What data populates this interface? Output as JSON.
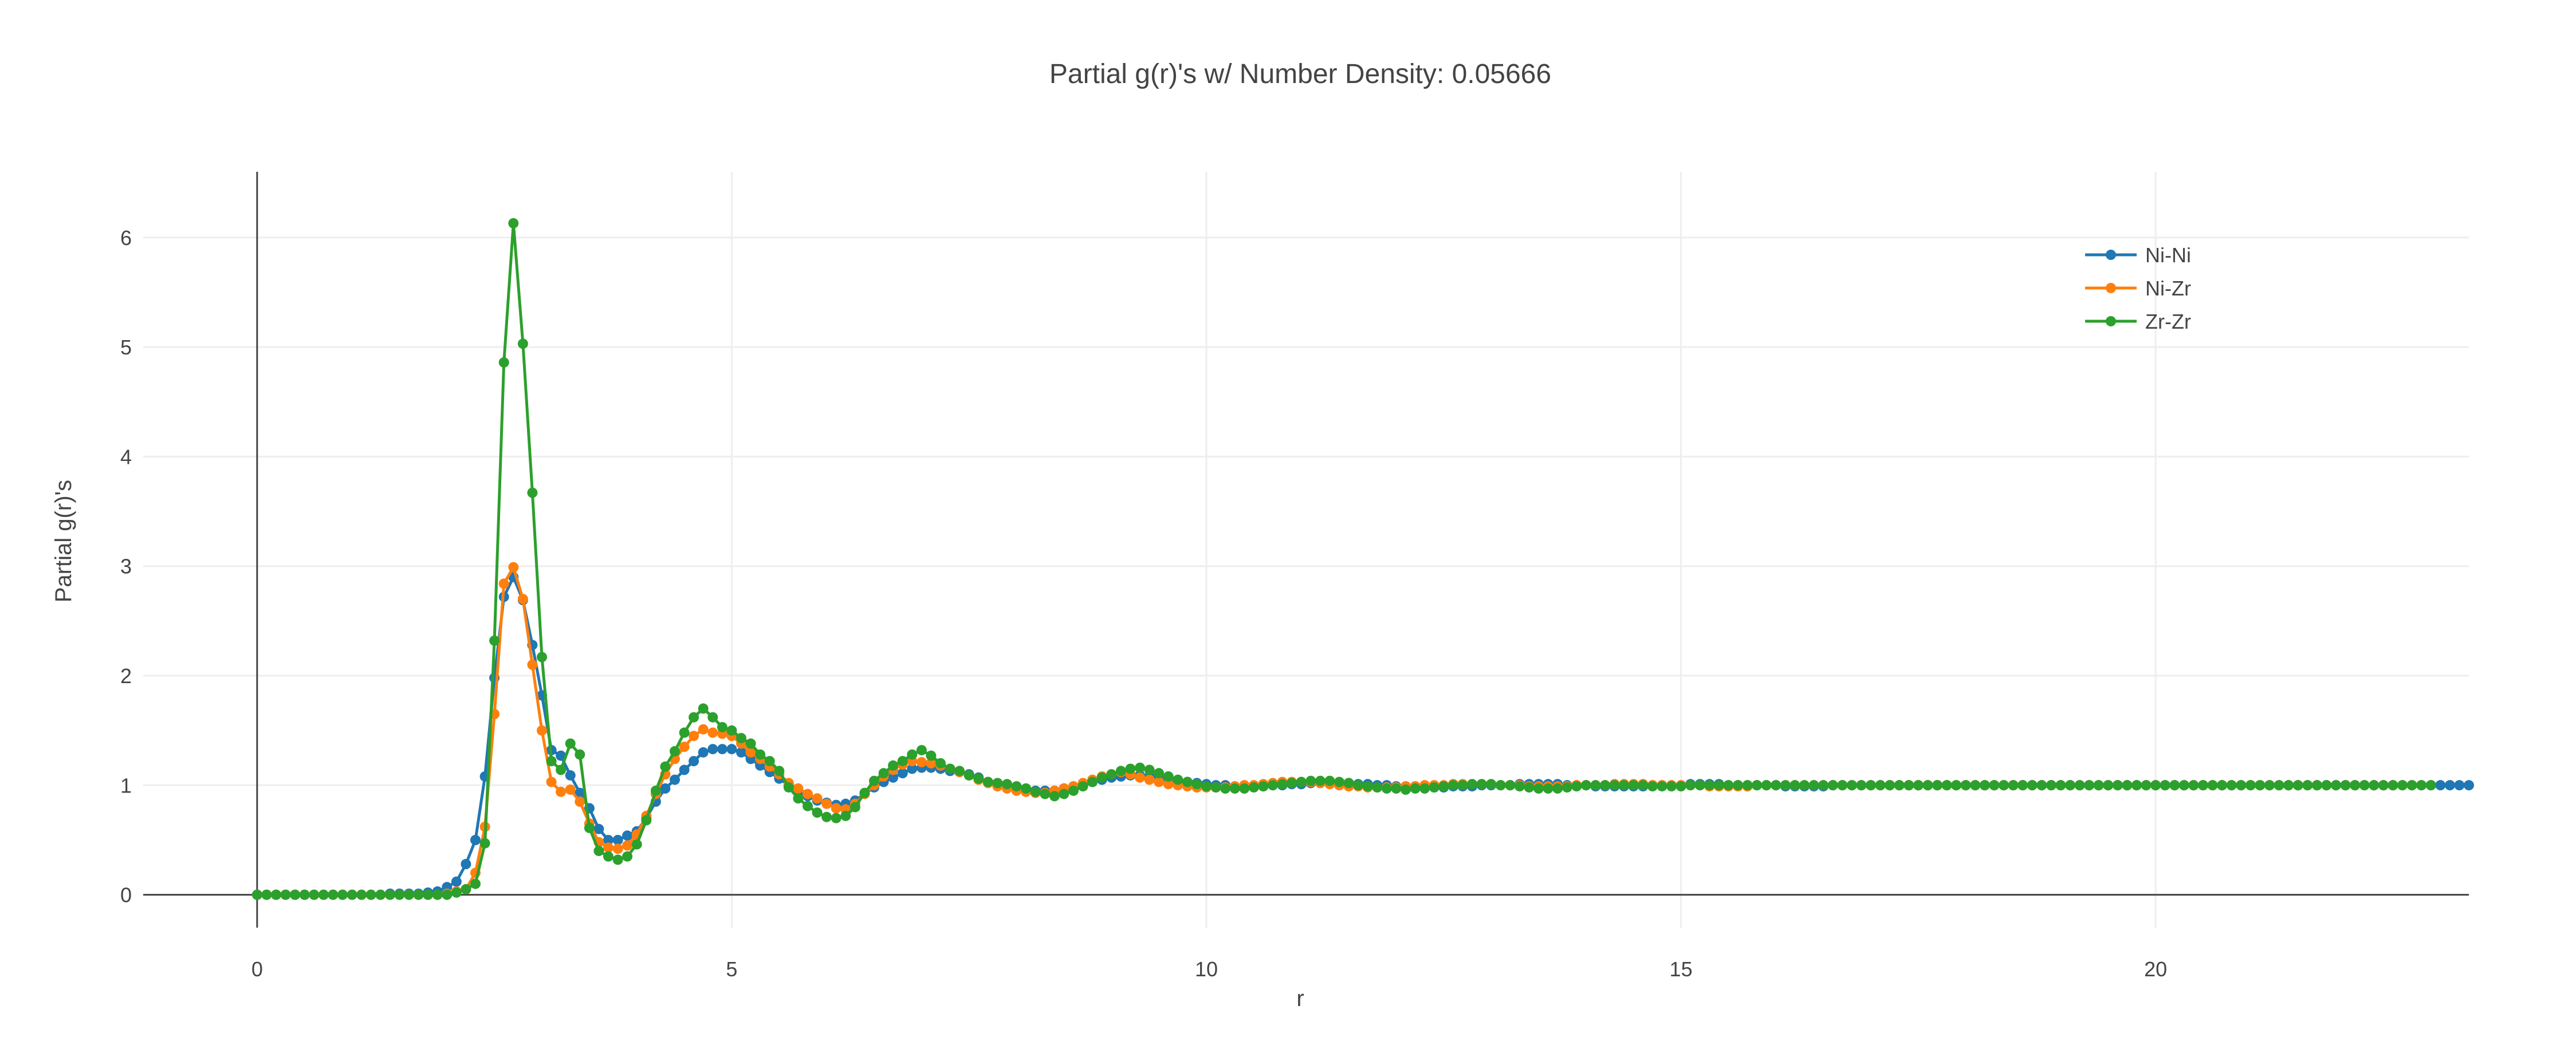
{
  "chart_data": {
    "type": "line",
    "title": "Partial g(r)'s w/ Number Density: 0.05666",
    "xlabel": "r",
    "ylabel": "Partial g(r)'s",
    "xlim": [
      -1.2,
      23.3
    ],
    "ylim": [
      -0.3,
      6.6
    ],
    "xticks": [
      0,
      5,
      10,
      15,
      20
    ],
    "xtick_labels": [
      "0",
      "5",
      "10",
      "15",
      "20"
    ],
    "yticks": [
      0,
      1,
      2,
      3,
      4,
      5,
      6
    ],
    "ytick_labels": [
      "0",
      "1",
      "2",
      "3",
      "4",
      "5",
      "6"
    ],
    "grid": true,
    "legend_position": "top-right",
    "x_start": 0,
    "x_step": 0.1,
    "series": [
      {
        "name": "Ni-Ni",
        "color": "#1f77b4",
        "values": [
          0,
          0,
          0,
          0,
          0,
          0,
          0,
          0,
          0,
          0,
          0,
          0,
          0,
          0,
          0.01,
          0.01,
          0.01,
          0.01,
          0.02,
          0.03,
          0.07,
          0.12,
          0.28,
          0.5,
          1.08,
          1.98,
          2.72,
          2.9,
          2.69,
          2.28,
          1.82,
          1.32,
          1.27,
          1.09,
          0.93,
          0.79,
          0.6,
          0.5,
          0.5,
          0.54,
          0.58,
          0.7,
          0.85,
          0.97,
          1.05,
          1.14,
          1.22,
          1.3,
          1.33,
          1.33,
          1.33,
          1.3,
          1.24,
          1.18,
          1.12,
          1.06,
          1,
          0.94,
          0.9,
          0.86,
          0.84,
          0.82,
          0.83,
          0.86,
          0.92,
          0.98,
          1.03,
          1.07,
          1.11,
          1.15,
          1.16,
          1.16,
          1.15,
          1.13,
          1.12,
          1.1,
          1.07,
          1.03,
          1.01,
          0.99,
          0.97,
          0.96,
          0.95,
          0.95,
          0.95,
          0.97,
          0.99,
          1,
          1.03,
          1.05,
          1.07,
          1.08,
          1.09,
          1.09,
          1.08,
          1.06,
          1.05,
          1.04,
          1.03,
          1.02,
          1.01,
          1,
          1,
          0.99,
          0.99,
          0.99,
          0.99,
          1,
          1,
          1.01,
          1.01,
          1.02,
          1.02,
          1.02,
          1.02,
          1.02,
          1.01,
          1.01,
          1,
          1,
          0.99,
          0.99,
          0.99,
          0.98,
          0.98,
          0.98,
          0.99,
          0.99,
          0.99,
          1,
          1,
          1,
          1,
          1.01,
          1.01,
          1.01,
          1.01,
          1.01,
          1,
          1,
          1,
          0.99,
          0.99,
          0.99,
          0.99,
          0.99,
          0.99,
          1,
          1,
          1,
          1,
          1.01,
          1.01,
          1.01,
          1.01,
          1,
          1,
          1,
          1,
          1,
          1,
          0.99,
          0.99,
          0.99,
          0.99,
          0.99,
          1,
          1,
          1,
          1,
          1,
          1,
          1,
          1,
          1,
          1,
          1,
          1,
          1,
          1,
          1,
          1,
          1,
          1,
          1,
          1,
          1,
          1,
          1,
          1,
          1,
          1,
          1,
          1,
          1,
          1,
          1,
          1,
          1,
          1,
          1,
          1,
          1,
          1,
          1,
          1,
          1,
          1,
          1,
          1,
          1,
          1,
          1,
          1,
          1,
          1,
          1,
          1,
          1,
          1,
          1,
          1,
          1,
          1,
          1,
          1,
          1,
          1,
          1,
          1,
          1,
          1,
          1,
          1
        ]
      },
      {
        "name": "Ni-Zr",
        "color": "#ff7f0e",
        "values": [
          0,
          0,
          0,
          0,
          0,
          0,
          0,
          0,
          0,
          0,
          0,
          0,
          0,
          0,
          0,
          0,
          0,
          0,
          0,
          0,
          0.01,
          0.03,
          0.05,
          0.2,
          0.62,
          1.65,
          2.84,
          2.99,
          2.7,
          2.1,
          1.5,
          1.03,
          0.94,
          0.96,
          0.85,
          0.65,
          0.48,
          0.43,
          0.42,
          0.45,
          0.55,
          0.72,
          0.92,
          1.1,
          1.24,
          1.35,
          1.45,
          1.51,
          1.48,
          1.47,
          1.45,
          1.38,
          1.3,
          1.24,
          1.17,
          1.1,
          1.02,
          0.97,
          0.92,
          0.88,
          0.83,
          0.79,
          0.78,
          0.83,
          0.92,
          1,
          1.08,
          1.14,
          1.19,
          1.22,
          1.21,
          1.2,
          1.18,
          1.15,
          1.12,
          1.09,
          1.05,
          1.02,
          0.99,
          0.97,
          0.95,
          0.94,
          0.93,
          0.93,
          0.95,
          0.97,
          0.99,
          1.02,
          1.05,
          1.08,
          1.1,
          1.12,
          1.1,
          1.07,
          1.05,
          1.03,
          1.01,
          1,
          0.99,
          0.98,
          0.98,
          0.98,
          0.98,
          0.99,
          1,
          1,
          1.01,
          1.02,
          1.03,
          1.03,
          1.03,
          1.03,
          1.02,
          1.01,
          1,
          0.99,
          0.99,
          0.98,
          0.98,
          0.98,
          0.98,
          0.99,
          0.99,
          1,
          1,
          1,
          1.01,
          1.01,
          1.01,
          1.01,
          1.01,
          1,
          1,
          1,
          0.99,
          0.99,
          0.99,
          0.99,
          0.99,
          1,
          1,
          1,
          1,
          1.01,
          1.01,
          1.01,
          1.01,
          1,
          1,
          1,
          1,
          1,
          1,
          0.99,
          0.99,
          0.99,
          0.99,
          0.99,
          1,
          1,
          1,
          1,
          1,
          1,
          1,
          1,
          1,
          1,
          1,
          1,
          1,
          1,
          1,
          1,
          1,
          1,
          1,
          1,
          1,
          1,
          1,
          1,
          1,
          1,
          1,
          1,
          1,
          1,
          1,
          1,
          1,
          1,
          1,
          1,
          1,
          1,
          1,
          1,
          1,
          1,
          1,
          1,
          1,
          1,
          1,
          1,
          1,
          1,
          1,
          1,
          1,
          1,
          1,
          1,
          1,
          1,
          1,
          1,
          1,
          1,
          1,
          1,
          1,
          1,
          1,
          1,
          1,
          1
        ]
      },
      {
        "name": "Zr-Zr",
        "color": "#2ca02c",
        "values": [
          0,
          0,
          0,
          0,
          0,
          0,
          0,
          0,
          0,
          0,
          0,
          0,
          0,
          0,
          0,
          0,
          0,
          0,
          0,
          0,
          0,
          0.02,
          0.05,
          0.1,
          0.47,
          2.32,
          4.86,
          6.13,
          5.03,
          3.67,
          2.17,
          1.22,
          1.14,
          1.38,
          1.28,
          0.61,
          0.4,
          0.35,
          0.32,
          0.35,
          0.46,
          0.68,
          0.95,
          1.17,
          1.31,
          1.48,
          1.62,
          1.7,
          1.62,
          1.53,
          1.5,
          1.43,
          1.38,
          1.28,
          1.22,
          1.13,
          0.98,
          0.88,
          0.81,
          0.75,
          0.71,
          0.7,
          0.72,
          0.8,
          0.93,
          1.04,
          1.11,
          1.18,
          1.22,
          1.28,
          1.32,
          1.27,
          1.2,
          1.15,
          1.13,
          1.09,
          1.06,
          1.03,
          1.02,
          1.01,
          0.99,
          0.97,
          0.94,
          0.92,
          0.9,
          0.92,
          0.95,
          0.99,
          1.03,
          1.07,
          1.1,
          1.13,
          1.15,
          1.16,
          1.14,
          1.11,
          1.08,
          1.05,
          1.03,
          1.01,
          0.99,
          0.98,
          0.97,
          0.97,
          0.97,
          0.98,
          0.99,
          1,
          1.01,
          1.02,
          1.03,
          1.04,
          1.04,
          1.04,
          1.03,
          1.02,
          1,
          0.99,
          0.98,
          0.97,
          0.97,
          0.96,
          0.97,
          0.97,
          0.98,
          0.99,
          1,
          1,
          1.01,
          1.01,
          1.01,
          1,
          1,
          0.99,
          0.98,
          0.97,
          0.97,
          0.97,
          0.98,
          0.99,
          1,
          1,
          1,
          1,
          1,
          1,
          1,
          0.99,
          0.99,
          0.99,
          0.99,
          1,
          1,
          1,
          1,
          1,
          1,
          1,
          1,
          1,
          1,
          1,
          1,
          1,
          1,
          1,
          1,
          1,
          1,
          1,
          1,
          1,
          1,
          1,
          1,
          1,
          1,
          1,
          1,
          1,
          1,
          1,
          1,
          1,
          1,
          1,
          1,
          1,
          1,
          1,
          1,
          1,
          1,
          1,
          1,
          1,
          1,
          1,
          1,
          1,
          1,
          1,
          1,
          1,
          1,
          1,
          1,
          1,
          1,
          1,
          1,
          1,
          1,
          1,
          1,
          1,
          1,
          1,
          1,
          1,
          1,
          1,
          1,
          1,
          1,
          1,
          1,
          1,
          1,
          1
        ]
      }
    ]
  }
}
